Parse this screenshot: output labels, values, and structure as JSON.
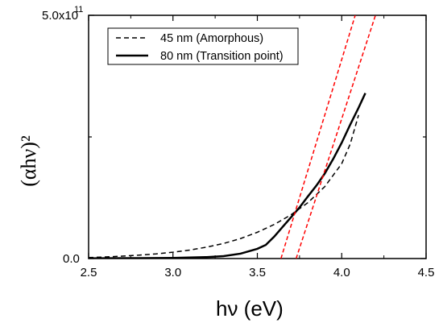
{
  "chart_data": {
    "type": "line",
    "xlabel": "hν (eV)",
    "ylabel": "(αhν)²",
    "xlim": [
      2.5,
      4.5
    ],
    "ylim": [
      0,
      500000000000.0
    ],
    "x_ticks": [
      2.5,
      3.0,
      3.5,
      4.0,
      4.5
    ],
    "x_tick_labels": [
      "2.5",
      "3.0",
      "3.5",
      "4.0",
      "4.5"
    ],
    "y_ticks": [
      0,
      500000000000.0
    ],
    "y_tick_labels": [
      "0.0",
      "5.0x10",
      "11"
    ],
    "grid": false,
    "legend_position": "top-left",
    "series": [
      {
        "name": "45 nm (Amorphous)",
        "style": "dashed",
        "color": "#000000",
        "x": [
          2.5,
          2.6,
          2.7,
          2.8,
          2.9,
          3.0,
          3.1,
          3.2,
          3.3,
          3.4,
          3.5,
          3.6,
          3.7,
          3.8,
          3.9,
          4.0,
          4.05,
          4.1
        ],
        "y": [
          2000000000.0,
          3300000000.0,
          5000000000.0,
          7000000000.0,
          9500000000.0,
          13000000000.0,
          17500000000.0,
          23500000000.0,
          31000000000.0,
          41000000000.0,
          54000000000.0,
          70000000000.0,
          90000000000.0,
          115000000000.0,
          148000000000.0,
          195000000000.0,
          235000000000.0,
          295000000000.0
        ]
      },
      {
        "name": "80 nm (Transition point)",
        "style": "solid",
        "color": "#000000",
        "x": [
          2.5,
          2.8,
          3.0,
          3.2,
          3.3,
          3.4,
          3.5,
          3.55,
          3.6,
          3.65,
          3.7,
          3.75,
          3.8,
          3.85,
          3.9,
          3.95,
          4.0,
          4.05,
          4.1,
          4.14
        ],
        "y": [
          500000000.0,
          800000000.0,
          1200000000.0,
          3000000000.0,
          5000000000.0,
          10000000000.0,
          20000000000.0,
          28000000000.0,
          45000000000.0,
          65000000000.0,
          85000000000.0,
          105000000000.0,
          128000000000.0,
          150000000000.0,
          175000000000.0,
          205000000000.0,
          238000000000.0,
          275000000000.0,
          310000000000.0,
          340000000000.0
        ]
      }
    ],
    "fit_lines": [
      {
        "style": "dashed",
        "color": "#ff0000",
        "x": [
          3.64,
          4.08
        ],
        "y": [
          0,
          500000000000.0
        ]
      },
      {
        "style": "dashed",
        "color": "#ff0000",
        "x": [
          3.73,
          4.2
        ],
        "y": [
          0,
          500000000000.0
        ]
      }
    ]
  }
}
